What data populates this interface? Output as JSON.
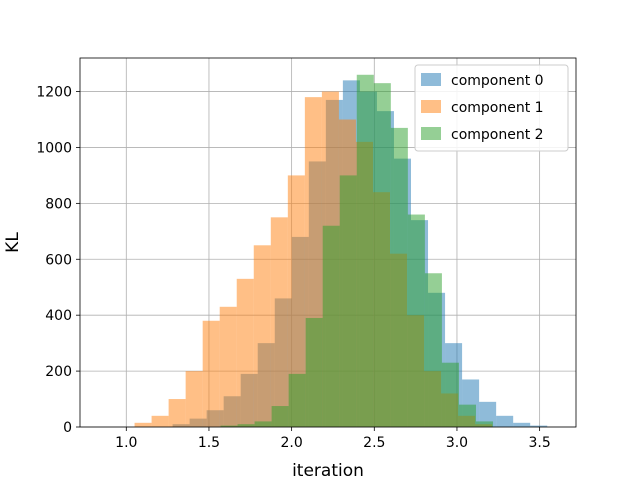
{
  "chart_data": {
    "type": "histogram",
    "title": "",
    "xlabel": "iteration",
    "ylabel": "KL",
    "xlim": [
      0.72,
      3.72
    ],
    "ylim": [
      0,
      1320
    ],
    "xticks": [
      1.0,
      1.5,
      2.0,
      2.5,
      3.0,
      3.5
    ],
    "xtick_labels": [
      "1.0",
      "1.5",
      "2.0",
      "2.5",
      "3.0",
      "3.5"
    ],
    "yticks": [
      0,
      200,
      400,
      600,
      800,
      1000,
      1200
    ],
    "ytick_labels": [
      "0",
      "200",
      "400",
      "600",
      "800",
      "1000",
      "1200"
    ],
    "grid": true,
    "legend_position": "top-right",
    "series": [
      {
        "name": "component 0",
        "color": "#1f77b4",
        "alpha": 0.5,
        "bin_edges": [
          1.28,
          1.383,
          1.486,
          1.589,
          1.692,
          1.795,
          1.898,
          2.001,
          2.104,
          2.207,
          2.31,
          2.413,
          2.516,
          2.619,
          2.722,
          2.825,
          2.928,
          3.031,
          3.134,
          3.237,
          3.34,
          3.443,
          3.546
        ],
        "counts": [
          10,
          30,
          60,
          110,
          190,
          300,
          460,
          680,
          950,
          1170,
          1240,
          1200,
          1130,
          960,
          740,
          480,
          300,
          170,
          90,
          40,
          15,
          5
        ]
      },
      {
        "name": "component 1",
        "color": "#ff7f0e",
        "alpha": 0.5,
        "bin_edges": [
          1.05,
          1.153,
          1.256,
          1.359,
          1.462,
          1.565,
          1.668,
          1.771,
          1.874,
          1.977,
          2.08,
          2.183,
          2.286,
          2.389,
          2.492,
          2.595,
          2.698,
          2.801,
          2.904,
          3.007,
          3.11,
          3.213
        ],
        "counts": [
          15,
          40,
          100,
          200,
          380,
          430,
          530,
          650,
          750,
          900,
          1180,
          1200,
          1100,
          1020,
          840,
          620,
          400,
          200,
          120,
          40,
          10
        ]
      },
      {
        "name": "component 2",
        "color": "#2ca02c",
        "alpha": 0.5,
        "bin_edges": [
          1.57,
          1.673,
          1.776,
          1.879,
          1.982,
          2.085,
          2.188,
          2.291,
          2.394,
          2.497,
          2.6,
          2.703,
          2.806,
          2.909,
          3.012,
          3.115,
          3.218
        ],
        "counts": [
          5,
          10,
          20,
          75,
          190,
          390,
          720,
          900,
          1260,
          1230,
          1070,
          760,
          550,
          230,
          80,
          20
        ]
      }
    ]
  }
}
